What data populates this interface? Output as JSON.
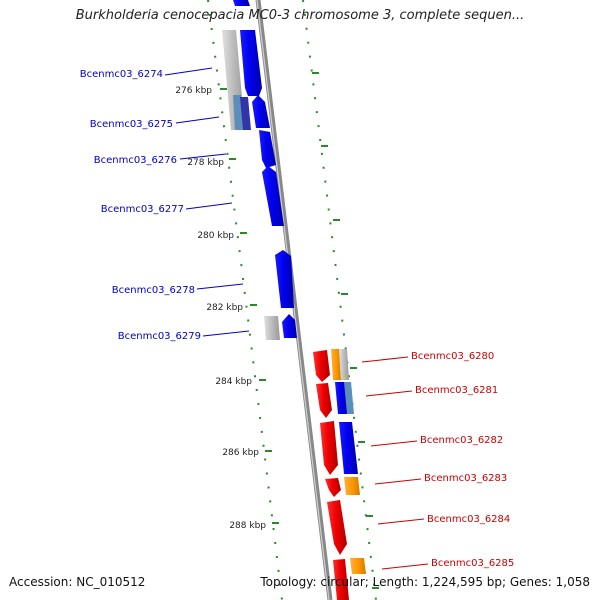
{
  "title": "Burkholderia cenocepacia MC0-3 chromosome 3, complete sequen...",
  "footer": {
    "accession": "Accession: NC_010512",
    "summary": "Topology: circular; Length: 1,224,595 bp; Genes: 1,058"
  },
  "colors": {
    "plus_strand_label": "#0000cc",
    "minus_strand_label": "#cc0000",
    "blue_gene": "#0000ee",
    "red_gene": "#ee0000",
    "orange_feature": "#ff9900",
    "grey_feature": "#bbbbbb",
    "teal_feature": "#5b8fb9",
    "backbone": "#888888",
    "dotted_track": "#2a8a2a"
  },
  "scale_ticks": [
    "276 kbp",
    "278 kbp",
    "280 kbp",
    "282 kbp",
    "284 kbp",
    "286 kbp",
    "288 kbp"
  ],
  "genes": [
    {
      "label": "Bcenmc03_6274",
      "side": "left"
    },
    {
      "label": "Bcenmc03_6275",
      "side": "left"
    },
    {
      "label": "Bcenmc03_6276",
      "side": "left"
    },
    {
      "label": "Bcenmc03_6277",
      "side": "left"
    },
    {
      "label": "Bcenmc03_6278",
      "side": "left"
    },
    {
      "label": "Bcenmc03_6279",
      "side": "left"
    },
    {
      "label": "Bcenmc03_6280",
      "side": "right"
    },
    {
      "label": "Bcenmc03_6281",
      "side": "right"
    },
    {
      "label": "Bcenmc03_6282",
      "side": "right"
    },
    {
      "label": "Bcenmc03_6283",
      "side": "right"
    },
    {
      "label": "Bcenmc03_6284",
      "side": "right"
    },
    {
      "label": "Bcenmc03_6285",
      "side": "right"
    }
  ]
}
